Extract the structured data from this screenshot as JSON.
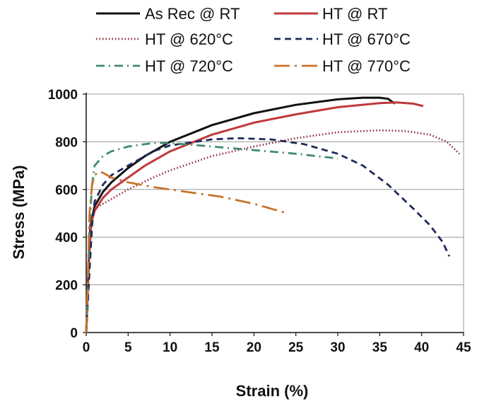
{
  "chart_data": {
    "type": "line",
    "title": "",
    "xlabel": "Strain (%)",
    "ylabel": "Stress (MPa)",
    "xlim": [
      0,
      45
    ],
    "ylim": [
      0,
      1000
    ],
    "x_ticks": [
      "0",
      "5",
      "10",
      "15",
      "20",
      "25",
      "30",
      "35",
      "40",
      "45"
    ],
    "y_ticks": [
      "0",
      "200",
      "400",
      "600",
      "800",
      "1000"
    ],
    "grid": "horizontal",
    "legend_position": "top",
    "series": [
      {
        "name": "As Rec @ RT",
        "color": "#111111",
        "style": "solid",
        "points": [
          [
            0,
            0
          ],
          [
            0.3,
            300
          ],
          [
            0.5,
            450
          ],
          [
            1,
            530
          ],
          [
            2,
            590
          ],
          [
            3,
            630
          ],
          [
            5,
            690
          ],
          [
            7,
            740
          ],
          [
            10,
            800
          ],
          [
            15,
            870
          ],
          [
            20,
            920
          ],
          [
            25,
            955
          ],
          [
            30,
            978
          ],
          [
            33,
            985
          ],
          [
            35,
            985
          ],
          [
            36,
            980
          ],
          [
            36.8,
            960
          ]
        ]
      },
      {
        "name": "HT @ RT",
        "color": "#c0393b",
        "style": "solid",
        "points": [
          [
            0,
            0
          ],
          [
            0.3,
            280
          ],
          [
            0.6,
            460
          ],
          [
            1,
            510
          ],
          [
            2,
            565
          ],
          [
            3,
            600
          ],
          [
            5,
            650
          ],
          [
            7,
            700
          ],
          [
            10,
            760
          ],
          [
            15,
            830
          ],
          [
            20,
            880
          ],
          [
            25,
            915
          ],
          [
            30,
            945
          ],
          [
            35,
            962
          ],
          [
            37,
            965
          ],
          [
            39,
            960
          ],
          [
            40.2,
            950
          ]
        ]
      },
      {
        "name": "HT @ 620°C",
        "color": "#8b2a35",
        "style": "dotted",
        "points": [
          [
            0,
            0
          ],
          [
            0.3,
            300
          ],
          [
            0.6,
            470
          ],
          [
            1,
            520
          ],
          [
            2,
            540
          ],
          [
            3,
            560
          ],
          [
            5,
            600
          ],
          [
            8,
            650
          ],
          [
            10,
            680
          ],
          [
            15,
            740
          ],
          [
            20,
            780
          ],
          [
            25,
            815
          ],
          [
            30,
            840
          ],
          [
            35,
            848
          ],
          [
            38,
            845
          ],
          [
            41,
            830
          ],
          [
            43,
            800
          ],
          [
            44.5,
            750
          ]
        ]
      },
      {
        "name": "HT @ 670°C",
        "color": "#1f2a5c",
        "style": "dashed",
        "points": [
          [
            0,
            0
          ],
          [
            0.3,
            200
          ],
          [
            0.7,
            450
          ],
          [
            1,
            550
          ],
          [
            2,
            620
          ],
          [
            3,
            660
          ],
          [
            5,
            700
          ],
          [
            8,
            760
          ],
          [
            10,
            785
          ],
          [
            15,
            810
          ],
          [
            18,
            815
          ],
          [
            22,
            810
          ],
          [
            26,
            790
          ],
          [
            30,
            750
          ],
          [
            33,
            700
          ],
          [
            36,
            620
          ],
          [
            39,
            520
          ],
          [
            41,
            450
          ],
          [
            42.5,
            380
          ],
          [
            43.3,
            320
          ]
        ]
      },
      {
        "name": "HT @ 720°C",
        "color": "#3e8a6e",
        "style": "dashdot",
        "points": [
          [
            0,
            0
          ],
          [
            0.2,
            200
          ],
          [
            0.4,
            450
          ],
          [
            0.7,
            620
          ],
          [
            1,
            700
          ],
          [
            2,
            740
          ],
          [
            3,
            760
          ],
          [
            5,
            780
          ],
          [
            8,
            795
          ],
          [
            10,
            795
          ],
          [
            15,
            780
          ],
          [
            20,
            765
          ],
          [
            25,
            750
          ],
          [
            30,
            730
          ]
        ]
      },
      {
        "name": "HT @ 770°C",
        "color": "#c8742a",
        "style": "longdashdot",
        "points": [
          [
            0,
            0
          ],
          [
            0.2,
            250
          ],
          [
            0.4,
            500
          ],
          [
            0.7,
            620
          ],
          [
            1,
            660
          ],
          [
            1.5,
            675
          ],
          [
            2,
            670
          ],
          [
            3,
            650
          ],
          [
            5,
            630
          ],
          [
            8,
            610
          ],
          [
            12,
            590
          ],
          [
            16,
            570
          ],
          [
            20,
            540
          ],
          [
            22,
            520
          ],
          [
            24,
            500
          ]
        ]
      }
    ]
  }
}
